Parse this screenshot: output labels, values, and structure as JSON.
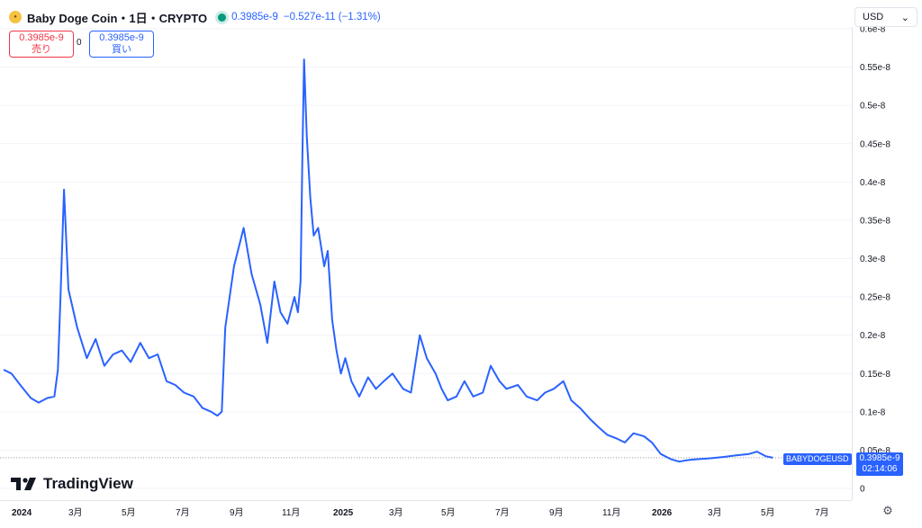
{
  "header": {
    "title": "Baby Doge Coin・1日・CRYPTO",
    "price": "0.3985e-9",
    "change": "−0.527e-11 (−1.31%)",
    "icon": "baby-doge-coin-icon",
    "live_color": "#089981"
  },
  "trade": {
    "sell_price": "0.3985e-9",
    "sell_label": "売り",
    "spread": "0",
    "buy_price": "0.3985e-9",
    "buy_label": "買い"
  },
  "currency": {
    "value": "USD",
    "caret": "⌄"
  },
  "logo": {
    "text": "TradingView"
  },
  "last_price": {
    "symbol": "BABYDOGEUSD",
    "price": "0.3985e-9",
    "countdown": "02:14:06"
  },
  "chart_data": {
    "type": "line",
    "line_color": "#2962ff",
    "x_tick_labels": [
      "2024",
      "3月",
      "5月",
      "7月",
      "9月",
      "11月",
      "2025",
      "3月",
      "5月",
      "7月",
      "9月",
      "11月",
      "2026",
      "3月",
      "5月",
      "7月"
    ],
    "y_tick_labels": [
      "0",
      "0.05e-8",
      "0.1e-8",
      "0.15e-8",
      "0.2e-8",
      "0.25e-8",
      "0.3e-8",
      "0.35e-8",
      "0.4e-8",
      "0.45e-8",
      "0.5e-8",
      "0.55e-8",
      "0.6e-8"
    ],
    "y_tick_values": [
      0,
      0.05,
      0.1,
      0.15,
      0.2,
      0.25,
      0.3,
      0.35,
      0.4,
      0.45,
      0.5,
      0.55,
      0.6
    ],
    "y_unit": "e-8",
    "ylim": [
      0,
      0.6
    ],
    "x": [
      "2024-01-01",
      "2024-01-10",
      "2024-01-20",
      "2024-02-01",
      "2024-02-10",
      "2024-02-20",
      "2024-02-28",
      "2024-03-03",
      "2024-03-06",
      "2024-03-10",
      "2024-03-15",
      "2024-03-25",
      "2024-04-05",
      "2024-04-15",
      "2024-04-25",
      "2024-05-05",
      "2024-05-15",
      "2024-05-25",
      "2024-06-05",
      "2024-06-15",
      "2024-06-25",
      "2024-07-05",
      "2024-07-15",
      "2024-07-25",
      "2024-08-05",
      "2024-08-15",
      "2024-08-25",
      "2024-09-01",
      "2024-09-06",
      "2024-09-10",
      "2024-09-20",
      "2024-10-01",
      "2024-10-10",
      "2024-10-20",
      "2024-10-28",
      "2024-11-05",
      "2024-11-12",
      "2024-11-20",
      "2024-11-28",
      "2024-12-02",
      "2024-12-05",
      "2024-12-07",
      "2024-12-09",
      "2024-12-12",
      "2024-12-16",
      "2024-12-20",
      "2024-12-25",
      "2025-01-01",
      "2025-01-05",
      "2025-01-10",
      "2025-01-15",
      "2025-01-20",
      "2025-01-25",
      "2025-02-01",
      "2025-02-10",
      "2025-02-20",
      "2025-03-01",
      "2025-03-10",
      "2025-03-20",
      "2025-04-01",
      "2025-04-10",
      "2025-04-20",
      "2025-04-28",
      "2025-05-08",
      "2025-05-15",
      "2025-05-22",
      "2025-06-01",
      "2025-06-10",
      "2025-06-20",
      "2025-07-01",
      "2025-07-10",
      "2025-07-20",
      "2025-07-28",
      "2025-08-10",
      "2025-08-20",
      "2025-09-01",
      "2025-09-10",
      "2025-09-20",
      "2025-10-01",
      "2025-10-10",
      "2025-10-20",
      "2025-11-01",
      "2025-11-10",
      "2025-11-20",
      "2025-12-01",
      "2025-12-10",
      "2025-12-20",
      "2026-01-01",
      "2026-01-10",
      "2026-01-20",
      "2026-02-01",
      "2026-02-10",
      "2026-02-20",
      "2026-03-01",
      "2026-03-15",
      "2026-04-01",
      "2026-04-15",
      "2026-05-01",
      "2026-05-10",
      "2026-05-20",
      "2026-05-28"
    ],
    "y": [
      0.155,
      0.15,
      0.135,
      0.118,
      0.112,
      0.118,
      0.12,
      0.155,
      0.25,
      0.39,
      0.26,
      0.21,
      0.17,
      0.195,
      0.16,
      0.175,
      0.18,
      0.165,
      0.19,
      0.17,
      0.175,
      0.14,
      0.135,
      0.125,
      0.12,
      0.105,
      0.1,
      0.095,
      0.1,
      0.21,
      0.29,
      0.34,
      0.28,
      0.24,
      0.19,
      0.27,
      0.23,
      0.215,
      0.25,
      0.23,
      0.27,
      0.43,
      0.56,
      0.46,
      0.38,
      0.33,
      0.34,
      0.29,
      0.31,
      0.22,
      0.18,
      0.15,
      0.17,
      0.14,
      0.12,
      0.145,
      0.13,
      0.14,
      0.15,
      0.13,
      0.125,
      0.2,
      0.17,
      0.15,
      0.13,
      0.115,
      0.12,
      0.14,
      0.12,
      0.125,
      0.16,
      0.14,
      0.13,
      0.135,
      0.12,
      0.115,
      0.125,
      0.13,
      0.14,
      0.115,
      0.105,
      0.09,
      0.08,
      0.07,
      0.065,
      0.06,
      0.072,
      0.068,
      0.06,
      0.045,
      0.038,
      0.035,
      0.037,
      0.038,
      0.039,
      0.041,
      0.043,
      0.045,
      0.048,
      0.042,
      0.04
    ]
  }
}
